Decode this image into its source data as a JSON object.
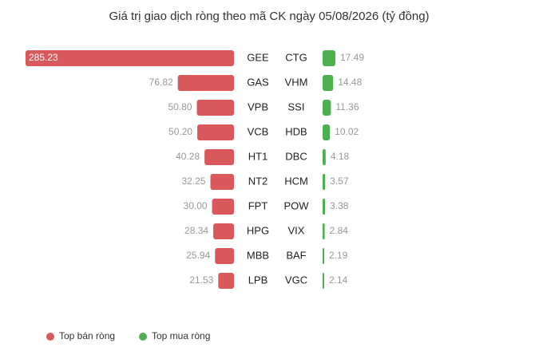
{
  "chart_data": {
    "type": "diverging-bar",
    "title": "Giá trị giao dịch ròng theo mã CK ngày 05/08/2026 (tỷ đồng)",
    "series": [
      {
        "name": "Top bán ròng",
        "color": "#d9585c",
        "categories": [
          "GEE",
          "GAS",
          "VPB",
          "VCB",
          "HT1",
          "NT2",
          "FPT",
          "HPG",
          "MBB",
          "LPB"
        ],
        "values": [
          285.23,
          76.82,
          50.8,
          50.2,
          40.28,
          32.25,
          30,
          28.34,
          25.94,
          21.53
        ],
        "value_labels": [
          "285.23",
          "76.82",
          "50.80",
          "50.20",
          "40.28",
          "32.25",
          "30.00",
          "28.34",
          "25.94",
          "21.53"
        ]
      },
      {
        "name": "Top mua ròng",
        "color": "#4caf50",
        "categories": [
          "CTG",
          "VHM",
          "SSI",
          "HDB",
          "DBC",
          "HCM",
          "POW",
          "VIX",
          "BAF",
          "VGC"
        ],
        "values": [
          17.49,
          14.48,
          11.36,
          10.02,
          4.18,
          3.57,
          3.38,
          2.84,
          2.19,
          2.14
        ],
        "value_labels": [
          "17.49",
          "14.48",
          "11.36",
          "10.02",
          "4.18",
          "3.57",
          "3.38",
          "2.84",
          "2.19",
          "2.14"
        ]
      }
    ]
  }
}
